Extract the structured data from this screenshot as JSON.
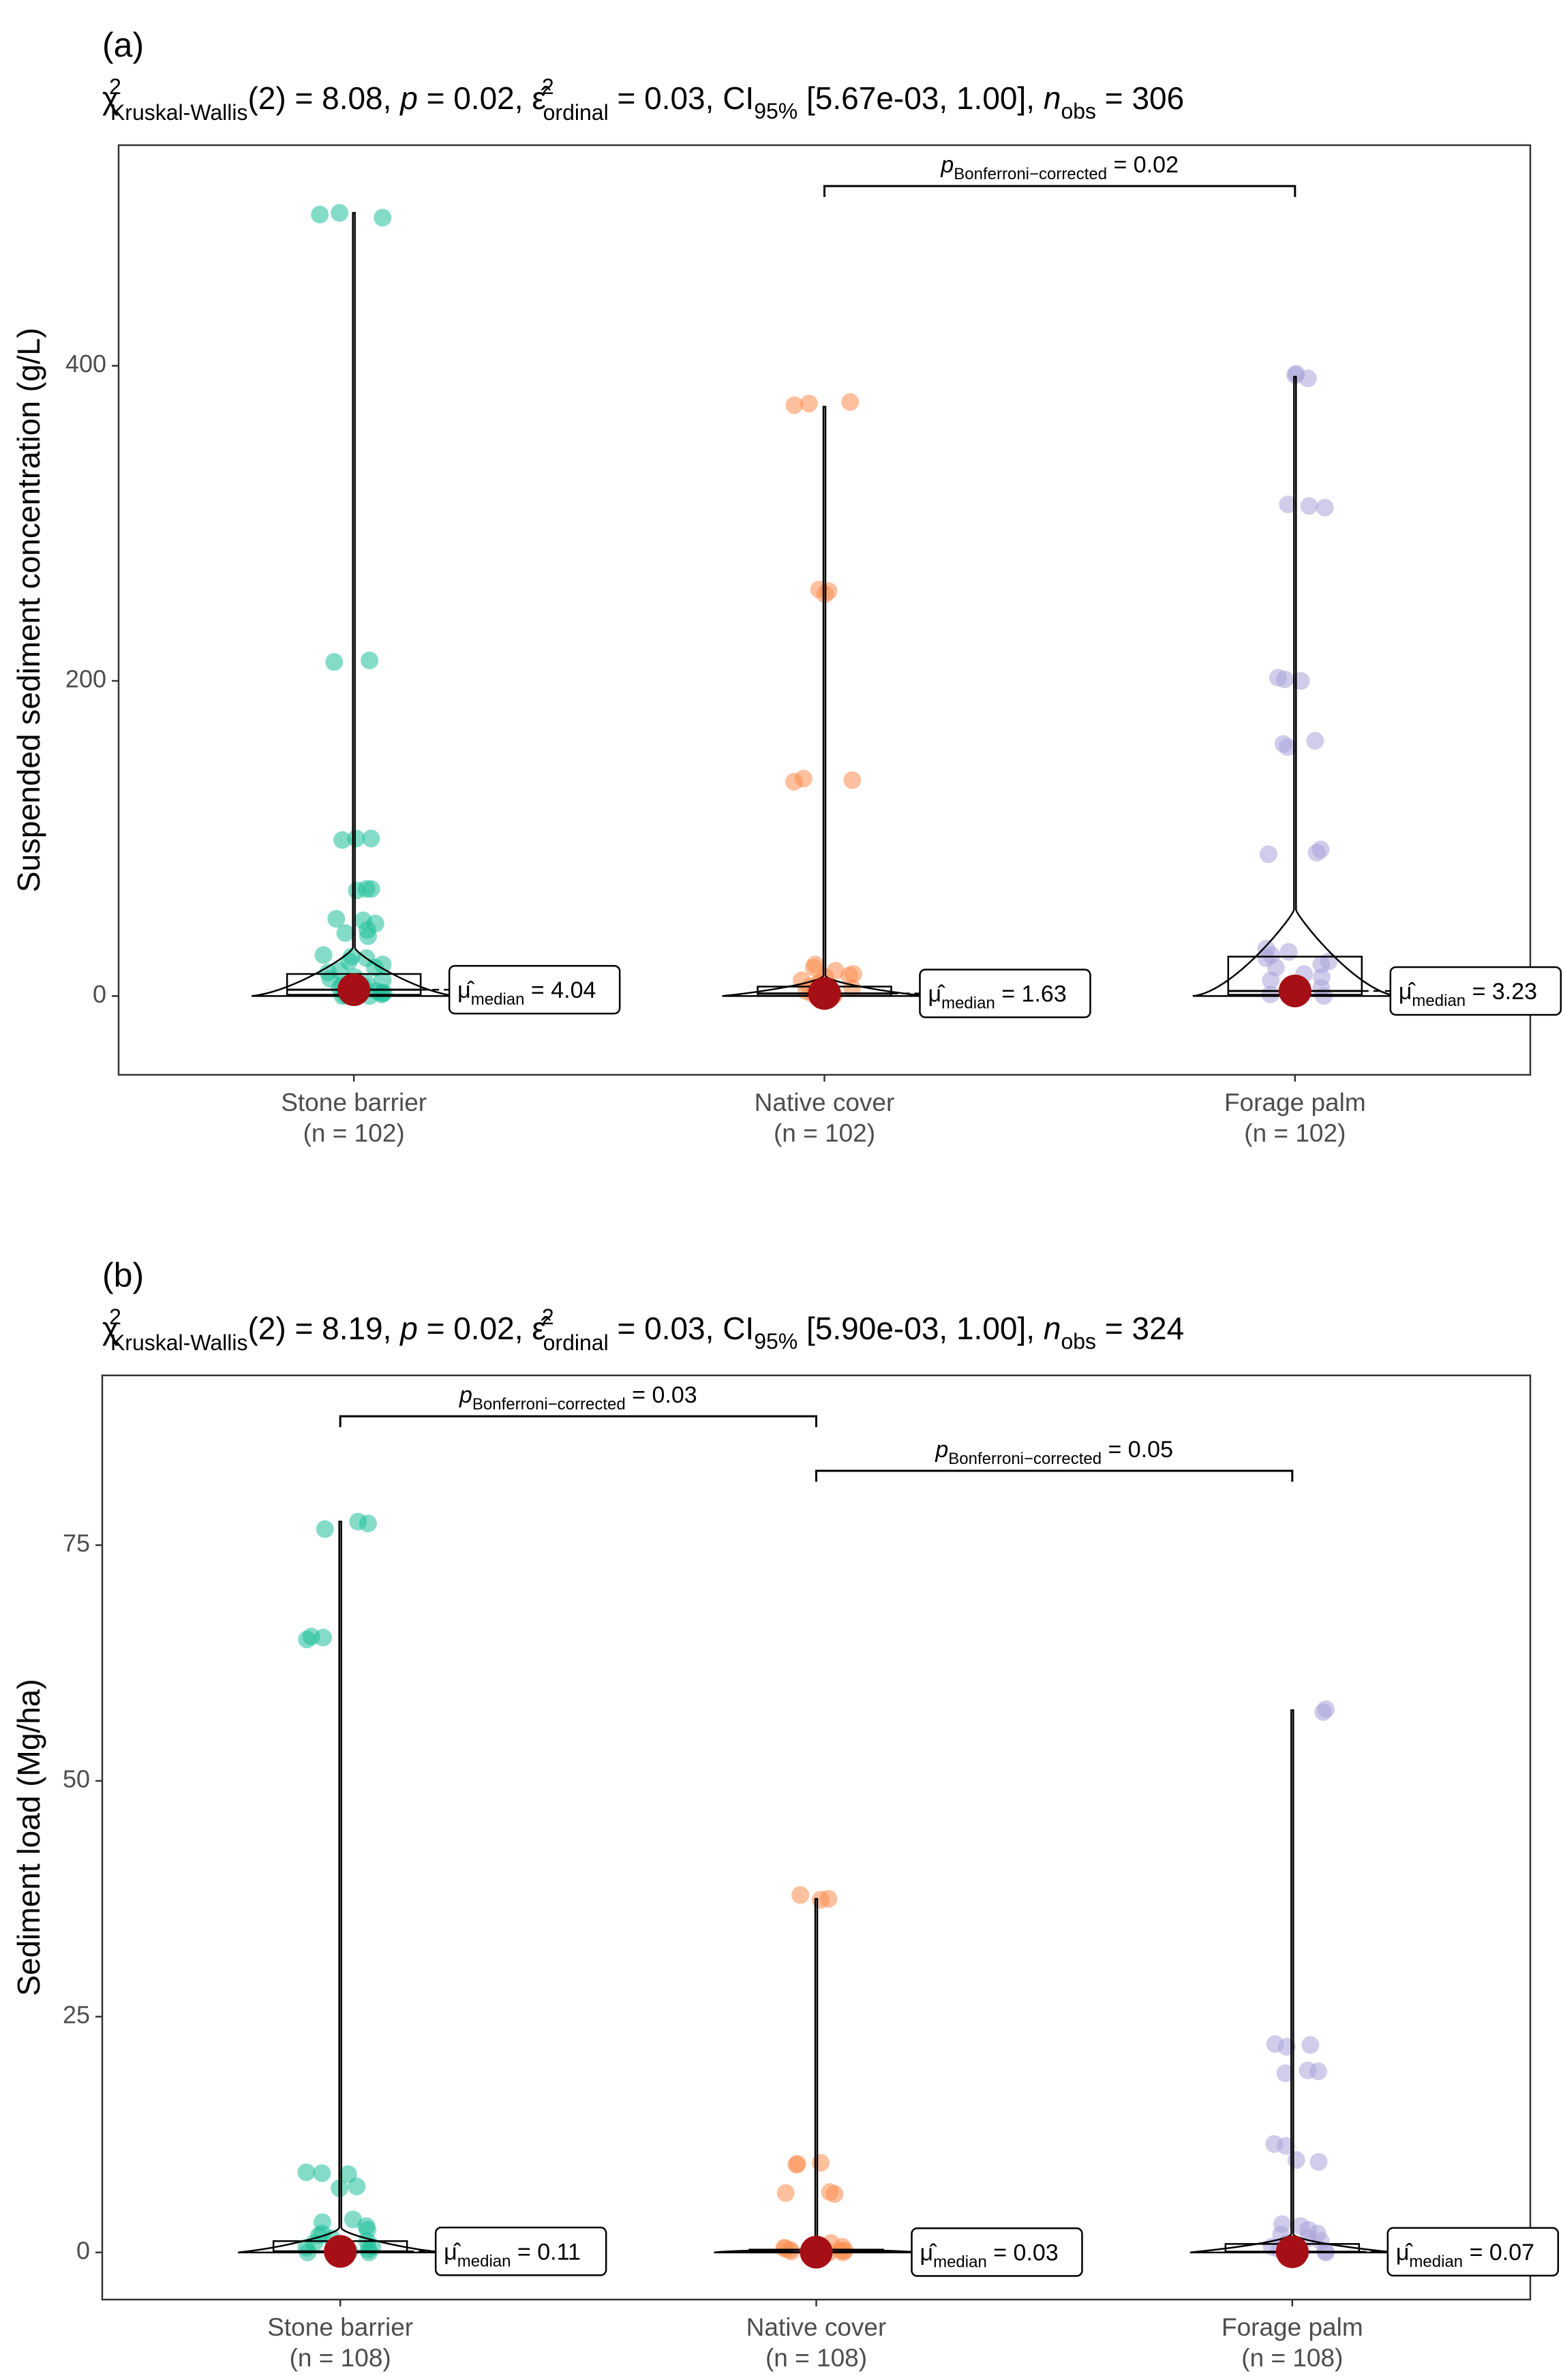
{
  "chart_data": [
    {
      "type": "violin_box_scatter",
      "panel_label": "(a)",
      "subtitle": {
        "chi_symbol": "χ",
        "chi_sup": "2",
        "chi_sub": "Kruskal-Wallis",
        "df": "(2)",
        "stat": "= 8.08, ",
        "p_label": "p",
        "p_value": " = 0.02, ",
        "eps_symbol": "ε̂",
        "eps_sup": "2",
        "eps_sub": "ordinal",
        "eps_value": " = 0.03, CI",
        "ci_sub": "95%",
        "ci_value": " [5.67e-03, 1.00], ",
        "n_label": "n",
        "n_sub": "obs",
        "n_value": " = 306"
      },
      "ylabel": "Suspended sediment concentration (g/L)",
      "ylim": [
        -50,
        540
      ],
      "yticks": [
        0,
        200,
        400
      ],
      "categories": [
        "Stone barrier",
        "Native cover",
        "Forage palm"
      ],
      "n_labels": [
        "(n = 102)",
        "(n = 102)",
        "(n = 102)"
      ],
      "colors": [
        "#1fbf9a",
        "#fb8c4f",
        "#aaa3d9"
      ],
      "medians": [
        4.04,
        1.63,
        3.23
      ],
      "median_labels": [
        "= 4.04",
        "= 1.63",
        "= 3.23"
      ],
      "box": [
        {
          "q1": 0.8,
          "q3": 14,
          "min": 0,
          "max": 497
        },
        {
          "q1": 0.2,
          "q3": 6,
          "min": 0,
          "max": 374
        },
        {
          "q1": 0.8,
          "q3": 25,
          "min": 0,
          "max": 393
        }
      ],
      "points": [
        [
          496,
          494,
          497,
          212,
          213,
          100,
          99,
          100,
          68,
          67,
          68,
          48,
          46,
          49,
          40,
          38,
          42,
          26,
          24,
          25,
          20,
          18,
          15,
          12,
          10,
          8,
          6,
          4,
          2,
          1,
          0.5,
          0,
          3,
          7,
          11,
          16,
          22,
          5,
          2,
          1,
          0
        ],
        [
          377,
          375,
          376,
          257,
          255,
          258,
          138,
          137,
          136,
          20,
          18,
          16,
          14,
          12,
          10,
          8,
          6,
          4,
          2,
          1,
          0,
          0,
          3,
          5,
          9,
          13,
          0,
          1
        ],
        [
          395,
          394,
          392,
          310,
          312,
          311,
          202,
          200,
          201,
          160,
          158,
          162,
          93,
          90,
          91,
          30,
          28,
          26,
          24,
          22,
          18,
          14,
          10,
          6,
          3,
          1,
          0,
          5,
          12,
          20
        ]
      ],
      "comparisons": [
        {
          "from": 1,
          "to": 2,
          "p_symbol": "p",
          "p_sub": "Bonferroni−corrected",
          "label": "= 0.02"
        }
      ]
    },
    {
      "type": "violin_box_scatter",
      "panel_label": "(b)",
      "subtitle": {
        "chi_symbol": "χ",
        "chi_sup": "2",
        "chi_sub": "Kruskal-Wallis",
        "df": "(2)",
        "stat": "= 8.19, ",
        "p_label": "p",
        "p_value": " = 0.02, ",
        "eps_symbol": "ε̂",
        "eps_sup": "2",
        "eps_sub": "ordinal",
        "eps_value": " = 0.03, CI",
        "ci_sub": "95%",
        "ci_value": " [5.90e-03, 1.00], ",
        "n_label": "n",
        "n_sub": "obs",
        "n_value": " = 324"
      },
      "ylabel": "Sediment load (Mg/ha)",
      "ylim": [
        -5,
        93
      ],
      "yticks": [
        0,
        25,
        50,
        75
      ],
      "categories": [
        "Stone barrier",
        "Native cover",
        "Forage palm"
      ],
      "n_labels": [
        "(n = 108)",
        "(n = 108)",
        "(n = 108)"
      ],
      "colors": [
        "#1fbf9a",
        "#fb8c4f",
        "#aaa3d9"
      ],
      "medians": [
        0.11,
        0.03,
        0.07
      ],
      "median_labels": [
        "= 0.11",
        "= 0.03",
        "= 0.07"
      ],
      "box": [
        {
          "q1": 0.02,
          "q3": 1.2,
          "min": 0,
          "max": 77.5
        },
        {
          "q1": 0.0,
          "q3": 0.3,
          "min": 0,
          "max": 37.5
        },
        {
          "q1": 0.02,
          "q3": 0.9,
          "min": 0,
          "max": 57.5
        }
      ],
      "points": [
        [
          77.3,
          77.5,
          76.7,
          65.0,
          65.2,
          65.3,
          8.5,
          8.3,
          8.4,
          7.0,
          6.8,
          3.5,
          3.2,
          2.8,
          2.0,
          1.5,
          1.2,
          1.0,
          0.8,
          0.5,
          0.3,
          0.1,
          0,
          0,
          2.4,
          1.8,
          0.6
        ],
        [
          37.4,
          37.5,
          37.9,
          9.4,
          9.3,
          9.5,
          6.3,
          6.2,
          6.4,
          1.0,
          0.8,
          0.5,
          0.3,
          0.2,
          0.1,
          0,
          0,
          0.4,
          0.6,
          0.2
        ],
        [
          57.6,
          57.3,
          22.0,
          21.8,
          22.1,
          19.3,
          19.2,
          19.0,
          11.5,
          11.3,
          9.6,
          9.8,
          3.0,
          2.8,
          2.4,
          1.9,
          1.5,
          1.0,
          0.6,
          0.3,
          0.1,
          0,
          0,
          2.0,
          1.2
        ]
      ],
      "comparisons": [
        {
          "from": 0,
          "to": 1,
          "p_symbol": "p",
          "p_sub": "Bonferroni−corrected",
          "label": "= 0.03"
        },
        {
          "from": 1,
          "to": 2,
          "p_symbol": "p",
          "p_sub": "Bonferroni−corrected",
          "label": "= 0.05"
        }
      ]
    }
  ],
  "median_symbol": "μ̂",
  "median_sub": "median"
}
